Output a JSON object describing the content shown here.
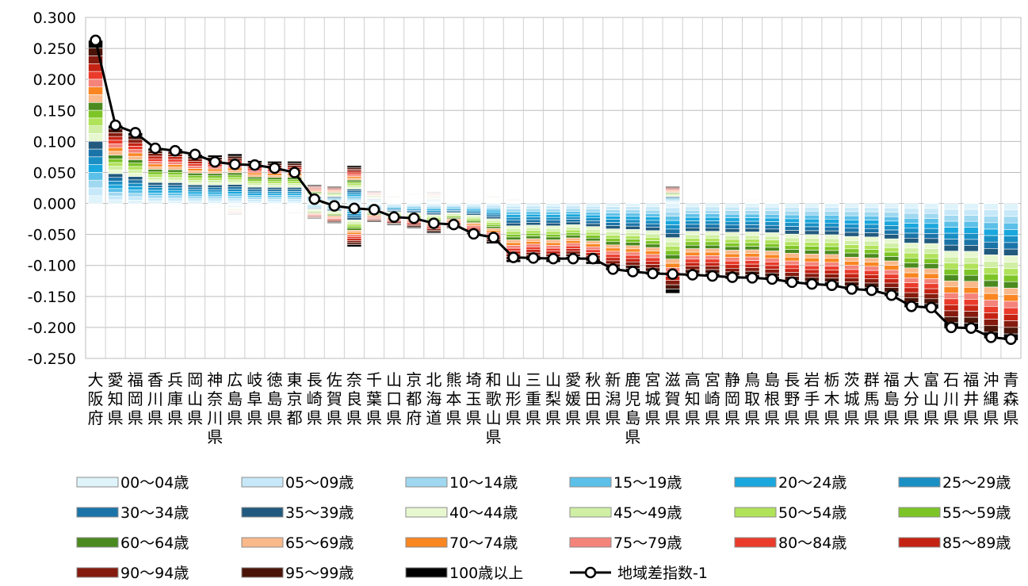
{
  "chart_data": {
    "type": "bar",
    "stacked": true,
    "ylim": [
      -0.25,
      0.3
    ],
    "yticks": [
      "0.300",
      "0.250",
      "0.200",
      "0.150",
      "0.100",
      "0.050",
      "0.000",
      "-0.050",
      "-0.100",
      "-0.150",
      "-0.200",
      "-0.250"
    ],
    "grid": true,
    "legend_position": "bottom",
    "categories": [
      "大阪府",
      "愛知県",
      "福岡県",
      "香川県",
      "兵庫県",
      "岡山県",
      "神奈川県",
      "広島県",
      "岐阜県",
      "徳島県",
      "東京都",
      "長崎県",
      "佐賀県",
      "奈良県",
      "千葉県",
      "山口県",
      "京都府",
      "北海道",
      "熊本県",
      "埼玉県",
      "和歌山県",
      "山形県",
      "三重県",
      "山梨県",
      "愛媛県",
      "秋田県",
      "新潟県",
      "鹿児島県",
      "宮城県",
      "滋賀県",
      "高知県",
      "宮崎県",
      "静岡県",
      "鳥取県",
      "島根県",
      "長野県",
      "岩手県",
      "栃木県",
      "茨城県",
      "群馬県",
      "福島県",
      "大分県",
      "富山県",
      "石川県",
      "福井県",
      "沖縄県",
      "青森県"
    ],
    "series": [
      {
        "name": "00～04歳",
        "color": "#dff3fb"
      },
      {
        "name": "05～09歳",
        "color": "#c6e8f8"
      },
      {
        "name": "10～14歳",
        "color": "#9fd8f0"
      },
      {
        "name": "15～19歳",
        "color": "#5cc0e8"
      },
      {
        "name": "20～24歳",
        "color": "#1aa7dd"
      },
      {
        "name": "25～29歳",
        "color": "#1a8fc4"
      },
      {
        "name": "30～34歳",
        "color": "#1b74a8"
      },
      {
        "name": "35～39歳",
        "color": "#215a7e"
      },
      {
        "name": "40～44歳",
        "color": "#e7f7cf"
      },
      {
        "name": "45～49歳",
        "color": "#d0efa4"
      },
      {
        "name": "50～54歳",
        "color": "#b0e25a"
      },
      {
        "name": "55～59歳",
        "color": "#7dc527"
      },
      {
        "name": "60～64歳",
        "color": "#4a8a1f"
      },
      {
        "name": "65～69歳",
        "color": "#f9b98a"
      },
      {
        "name": "70～74歳",
        "color": "#f98621"
      },
      {
        "name": "75～79歳",
        "color": "#f4837a"
      },
      {
        "name": "80～84歳",
        "color": "#ea3b2b"
      },
      {
        "name": "85～89歳",
        "color": "#c42314"
      },
      {
        "name": "90～94歳",
        "color": "#851b0e"
      },
      {
        "name": "95～99歳",
        "color": "#4a1408"
      },
      {
        "name": "100歳以上",
        "color": "#000000"
      }
    ],
    "line_series": {
      "name": "地域差指数-1",
      "color": "#000000",
      "values": [
        0.263,
        0.126,
        0.114,
        0.089,
        0.085,
        0.079,
        0.067,
        0.063,
        0.062,
        0.057,
        0.05,
        0.007,
        -0.004,
        -0.008,
        -0.01,
        -0.022,
        -0.024,
        -0.032,
        -0.034,
        -0.049,
        -0.055,
        -0.087,
        -0.088,
        -0.089,
        -0.089,
        -0.089,
        -0.106,
        -0.11,
        -0.113,
        -0.114,
        -0.115,
        -0.117,
        -0.119,
        -0.12,
        -0.122,
        -0.127,
        -0.13,
        -0.132,
        -0.138,
        -0.14,
        -0.148,
        -0.166,
        -0.168,
        -0.2,
        -0.201,
        -0.216,
        -0.219
      ]
    },
    "bar_ranges": [
      [
        0.0,
        0.263
      ],
      [
        0.0,
        0.126
      ],
      [
        0.0,
        0.114
      ],
      [
        0.0,
        0.089
      ],
      [
        -0.006,
        0.088
      ],
      [
        0.0,
        0.079
      ],
      [
        -0.012,
        0.078
      ],
      [
        -0.018,
        0.08
      ],
      [
        -0.006,
        0.069
      ],
      [
        -0.01,
        0.068
      ],
      [
        -0.016,
        0.068
      ],
      [
        -0.025,
        0.03
      ],
      [
        -0.032,
        0.028
      ],
      [
        -0.07,
        0.061
      ],
      [
        -0.03,
        0.02
      ],
      [
        -0.035,
        0.012
      ],
      [
        -0.04,
        0.016
      ],
      [
        -0.048,
        0.018
      ],
      [
        -0.04,
        0.001
      ],
      [
        -0.05,
        0.005
      ],
      [
        -0.065,
        0.012
      ],
      [
        -0.095,
        0.007
      ],
      [
        -0.092,
        0.0
      ],
      [
        -0.095,
        0.005
      ],
      [
        -0.09,
        0.0
      ],
      [
        -0.098,
        0.0
      ],
      [
        -0.108,
        0.0
      ],
      [
        -0.11,
        0.002
      ],
      [
        -0.115,
        0.0
      ],
      [
        -0.145,
        0.028
      ],
      [
        -0.118,
        0.0
      ],
      [
        -0.118,
        0.0
      ],
      [
        -0.122,
        0.0
      ],
      [
        -0.121,
        0.006
      ],
      [
        -0.124,
        0.004
      ],
      [
        -0.13,
        0.0
      ],
      [
        -0.132,
        0.0
      ],
      [
        -0.133,
        0.004
      ],
      [
        -0.14,
        0.0
      ],
      [
        -0.142,
        0.0
      ],
      [
        -0.15,
        0.0
      ],
      [
        -0.168,
        0.0
      ],
      [
        -0.17,
        0.003
      ],
      [
        -0.202,
        0.0
      ],
      [
        -0.203,
        0.003
      ],
      [
        -0.218,
        0.004
      ],
      [
        -0.221,
        0.0
      ]
    ]
  }
}
